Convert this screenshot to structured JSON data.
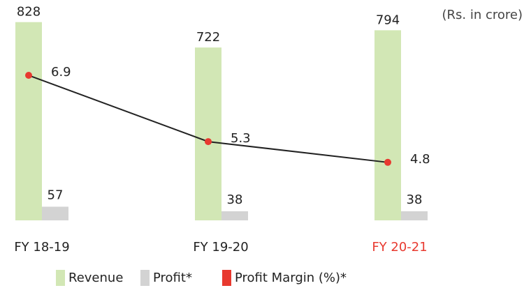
{
  "chart_data": {
    "type": "bar-line",
    "unit_note": "(Rs. in crore)",
    "categories": [
      "FY 18-19",
      "FY 19-20",
      "FY 20-21"
    ],
    "category_label_colors": [
      "#222222",
      "#222222",
      "#e8392f"
    ],
    "series": [
      {
        "name": "Revenue",
        "color": "#d2e7b5",
        "values": [
          828,
          722,
          794
        ]
      },
      {
        "name": "Profit*",
        "color": "#d3d3d3",
        "values": [
          57,
          38,
          38
        ]
      },
      {
        "name": "Profit Margin (%)*",
        "color": "#e8392f",
        "line_color": "#222222",
        "axis": "y2",
        "values": [
          6.9,
          5.3,
          4.8
        ]
      }
    ],
    "ylim": [
      0,
      900
    ],
    "y2lim": [
      3.4,
      8.6
    ]
  }
}
